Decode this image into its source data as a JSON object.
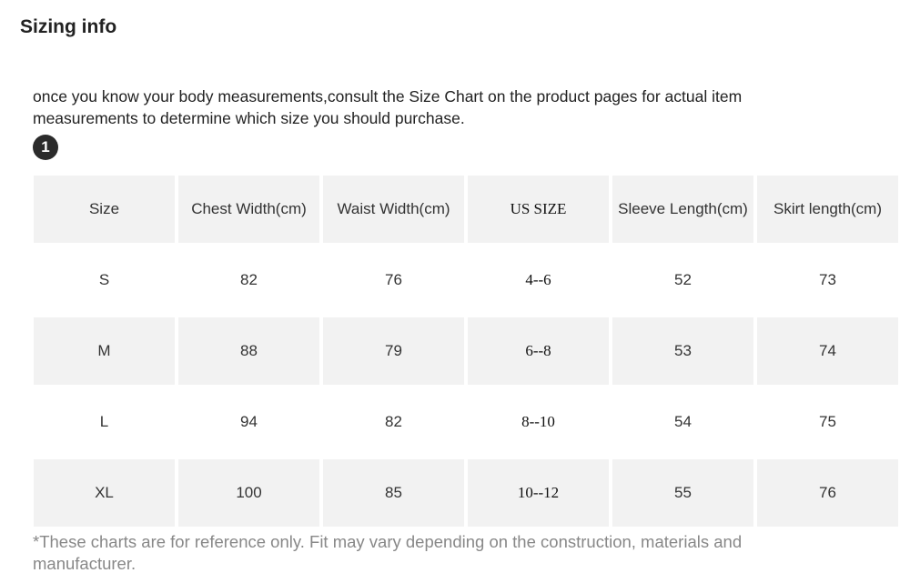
{
  "header": {
    "title": "Sizing info"
  },
  "intro": [
    "once you know your body measurements,consult the Size Chart on the product pages for actual item",
    "measurements to determine which size you should purchase."
  ],
  "badge": "1",
  "table": {
    "columns": [
      "Size",
      "Chest Width(cm)",
      "Waist Width(cm)",
      "US SIZE",
      "Sleeve Length(cm)",
      "Skirt length(cm)"
    ],
    "rows": [
      [
        "S",
        "82",
        "76",
        "4--6",
        "52",
        "73"
      ],
      [
        "M",
        "88",
        "79",
        "6--8",
        "53",
        "74"
      ],
      [
        "L",
        "94",
        "82",
        "8--10",
        "54",
        "75"
      ],
      [
        "XL",
        "100",
        "85",
        "10--12",
        "55",
        "76"
      ]
    ]
  },
  "footnote": [
    "*These charts are for reference only. Fit may vary depending on the construction, materials and",
    "manufacturer."
  ]
}
